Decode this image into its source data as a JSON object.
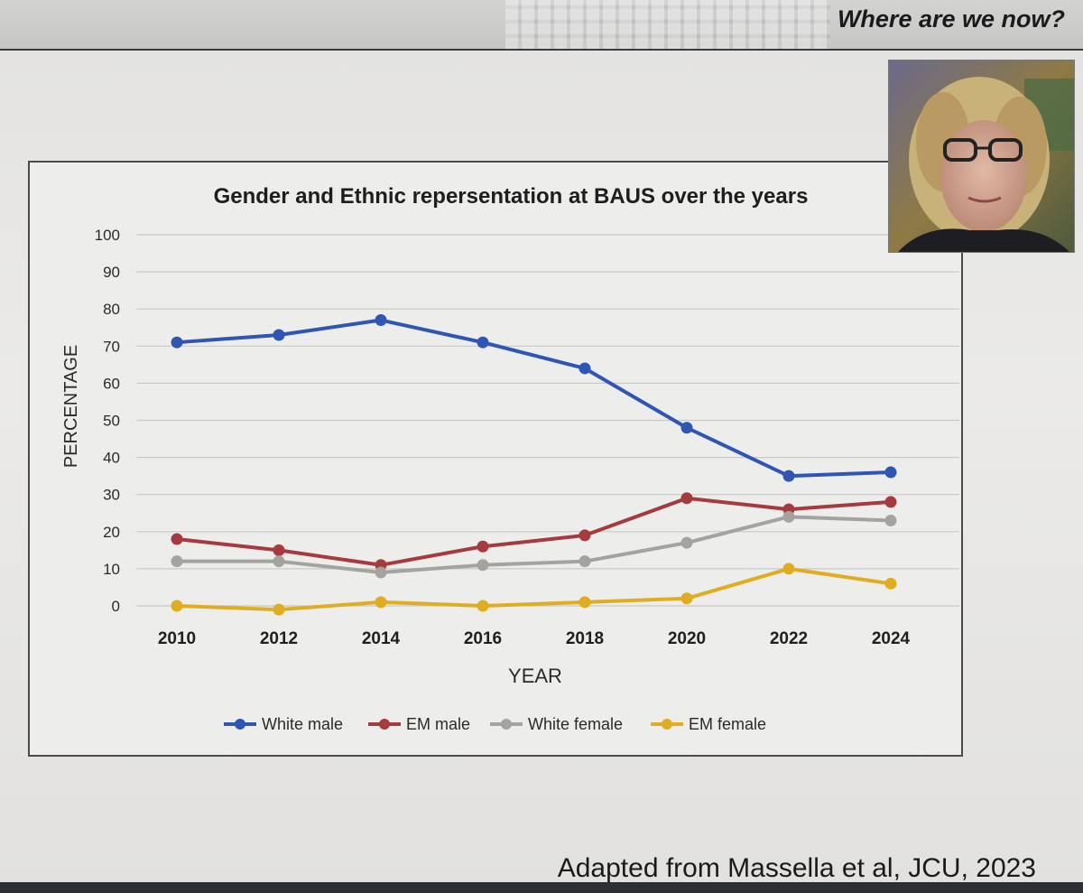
{
  "slide": {
    "title": "Where are we now?",
    "citation": "Adapted from Massella et al, JCU, 2023"
  },
  "photo": {
    "alt": "speaker-portrait"
  },
  "chart_data": {
    "type": "line",
    "title": "Gender and Ethnic repersentation at BAUS over the years",
    "xlabel": "YEAR",
    "ylabel": "PERCENTAGE",
    "categories": [
      "2010",
      "2012",
      "2014",
      "2016",
      "2018",
      "2020",
      "2022",
      "2024"
    ],
    "ylim": [
      0,
      100
    ],
    "yticks": [
      0,
      10,
      20,
      30,
      40,
      50,
      60,
      70,
      80,
      90,
      100
    ],
    "grid": true,
    "legend_position": "bottom",
    "series": [
      {
        "name": "White male",
        "color": "#2f55b5",
        "values": [
          71,
          73,
          77,
          71,
          64,
          48,
          35,
          36
        ]
      },
      {
        "name": "EM male",
        "color": "#a53a3f",
        "values": [
          18,
          15,
          11,
          16,
          19,
          29,
          26,
          28
        ]
      },
      {
        "name": "White female",
        "color": "#a3a39f",
        "values": [
          12,
          12,
          9,
          11,
          12,
          17,
          24,
          23
        ]
      },
      {
        "name": "EM female",
        "color": "#e0ad22",
        "values": [
          0,
          -1,
          1,
          0,
          1,
          2,
          10,
          6
        ]
      }
    ]
  }
}
